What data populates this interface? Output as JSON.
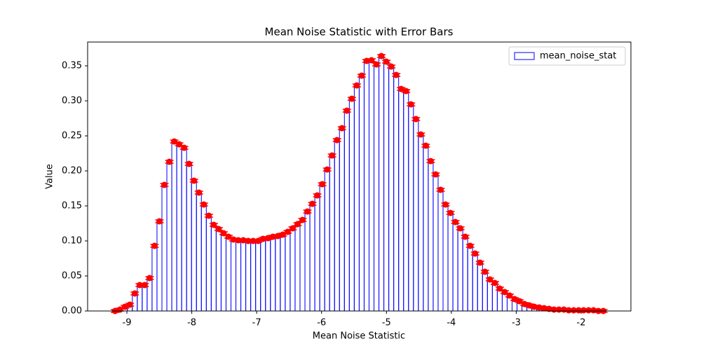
{
  "chart_data": {
    "type": "histogram",
    "title": "Mean Noise Statistic with Error Bars",
    "xlabel": "Mean Noise Statistic",
    "ylabel": "Value",
    "legend": "upper right",
    "series": [
      {
        "name": "mean_noise_stat",
        "color": "#0000ff",
        "error_color": "#ff0000",
        "bins": [
          -9.22,
          -9.144,
          -9.068,
          -8.992,
          -8.916,
          -8.84,
          -8.764,
          -8.688,
          -8.612,
          -8.536,
          -8.46,
          -8.384,
          -8.308,
          -8.232,
          -8.156,
          -8.08,
          -8.004,
          -7.928,
          -7.852,
          -7.776,
          -7.7,
          -7.624,
          -7.548,
          -7.472,
          -7.396,
          -7.32,
          -7.244,
          -7.168,
          -7.092,
          -7.016,
          -6.94,
          -6.864,
          -6.788,
          -6.712,
          -6.636,
          -6.56,
          -6.484,
          -6.408,
          -6.332,
          -6.256,
          -6.18,
          -6.104,
          -6.028,
          -5.952,
          -5.876,
          -5.8,
          -5.724,
          -5.648,
          -5.572,
          -5.496,
          -5.42,
          -5.344,
          -5.268,
          -5.192,
          -5.116,
          -5.04,
          -4.964,
          -4.888,
          -4.812,
          -4.736,
          -4.66,
          -4.584,
          -4.508,
          -4.432,
          -4.356,
          -4.28,
          -4.204,
          -4.128,
          -4.052,
          -3.976,
          -3.9,
          -3.824,
          -3.748,
          -3.672,
          -3.596,
          -3.52,
          -3.444,
          -3.368,
          -3.292,
          -3.216,
          -3.14,
          -3.064,
          -2.988,
          -2.912,
          -2.836,
          -2.76,
          -2.684,
          -2.608,
          -2.532,
          -2.456,
          -2.38,
          -2.304,
          -2.228,
          -2.152,
          -2.076,
          -2.0,
          -1.924,
          -1.848,
          -1.772,
          -1.696,
          -1.62
        ],
        "values": [
          0.0,
          0.002,
          0.006,
          0.009,
          0.025,
          0.037,
          0.037,
          0.047,
          0.093,
          0.128,
          0.18,
          0.213,
          0.242,
          0.238,
          0.233,
          0.21,
          0.186,
          0.169,
          0.152,
          0.136,
          0.123,
          0.117,
          0.111,
          0.106,
          0.102,
          0.101,
          0.101,
          0.1,
          0.1,
          0.1,
          0.103,
          0.104,
          0.106,
          0.107,
          0.109,
          0.113,
          0.118,
          0.124,
          0.13,
          0.142,
          0.153,
          0.165,
          0.181,
          0.202,
          0.222,
          0.244,
          0.261,
          0.286,
          0.303,
          0.322,
          0.336,
          0.357,
          0.358,
          0.352,
          0.364,
          0.356,
          0.349,
          0.337,
          0.317,
          0.314,
          0.295,
          0.274,
          0.252,
          0.236,
          0.214,
          0.195,
          0.173,
          0.152,
          0.14,
          0.127,
          0.118,
          0.106,
          0.093,
          0.082,
          0.069,
          0.056,
          0.045,
          0.04,
          0.032,
          0.027,
          0.022,
          0.017,
          0.014,
          0.01,
          0.008,
          0.006,
          0.005,
          0.004,
          0.003,
          0.002,
          0.002,
          0.002,
          0.001,
          0.001,
          0.001,
          0.001,
          0.001,
          0.001,
          0.0,
          0.0
        ],
        "errors": [
          0.002,
          0.002,
          0.002,
          0.002,
          0.002,
          0.002,
          0.002,
          0.002,
          0.002,
          0.002,
          0.002,
          0.002,
          0.002,
          0.002,
          0.002,
          0.002,
          0.002,
          0.002,
          0.002,
          0.002,
          0.002,
          0.002,
          0.002,
          0.002,
          0.002,
          0.002,
          0.002,
          0.002,
          0.002,
          0.002,
          0.002,
          0.002,
          0.002,
          0.002,
          0.002,
          0.002,
          0.002,
          0.002,
          0.002,
          0.002,
          0.002,
          0.002,
          0.002,
          0.002,
          0.002,
          0.002,
          0.002,
          0.002,
          0.002,
          0.002,
          0.002,
          0.002,
          0.002,
          0.002,
          0.002,
          0.002,
          0.002,
          0.002,
          0.002,
          0.002,
          0.002,
          0.002,
          0.002,
          0.002,
          0.002,
          0.002,
          0.002,
          0.002,
          0.002,
          0.002,
          0.002,
          0.002,
          0.002,
          0.002,
          0.002,
          0.002,
          0.002,
          0.002,
          0.002,
          0.002,
          0.002,
          0.002,
          0.002,
          0.002,
          0.002,
          0.002,
          0.002,
          0.002,
          0.002,
          0.002,
          0.002,
          0.002,
          0.002,
          0.002,
          0.002,
          0.002,
          0.002,
          0.002,
          0.002,
          0.002
        ]
      }
    ],
    "xlim": [
      -9.605,
      -1.233
    ],
    "xticks": [
      -9,
      -8,
      -7,
      -6,
      -5,
      -4,
      -3,
      -2
    ],
    "ylim": [
      0,
      0.384
    ],
    "yticks": [
      {
        "value": 0,
        "label": "0.00"
      },
      {
        "value": 0.05,
        "label": "0.05"
      },
      {
        "value": 0.1,
        "label": "0.10"
      },
      {
        "value": 0.15,
        "label": "0.15"
      },
      {
        "value": 0.2,
        "label": "0.20"
      },
      {
        "value": 0.25,
        "label": "0.25"
      },
      {
        "value": 0.3,
        "label": "0.30"
      },
      {
        "value": 0.35,
        "label": "0.35"
      }
    ]
  }
}
